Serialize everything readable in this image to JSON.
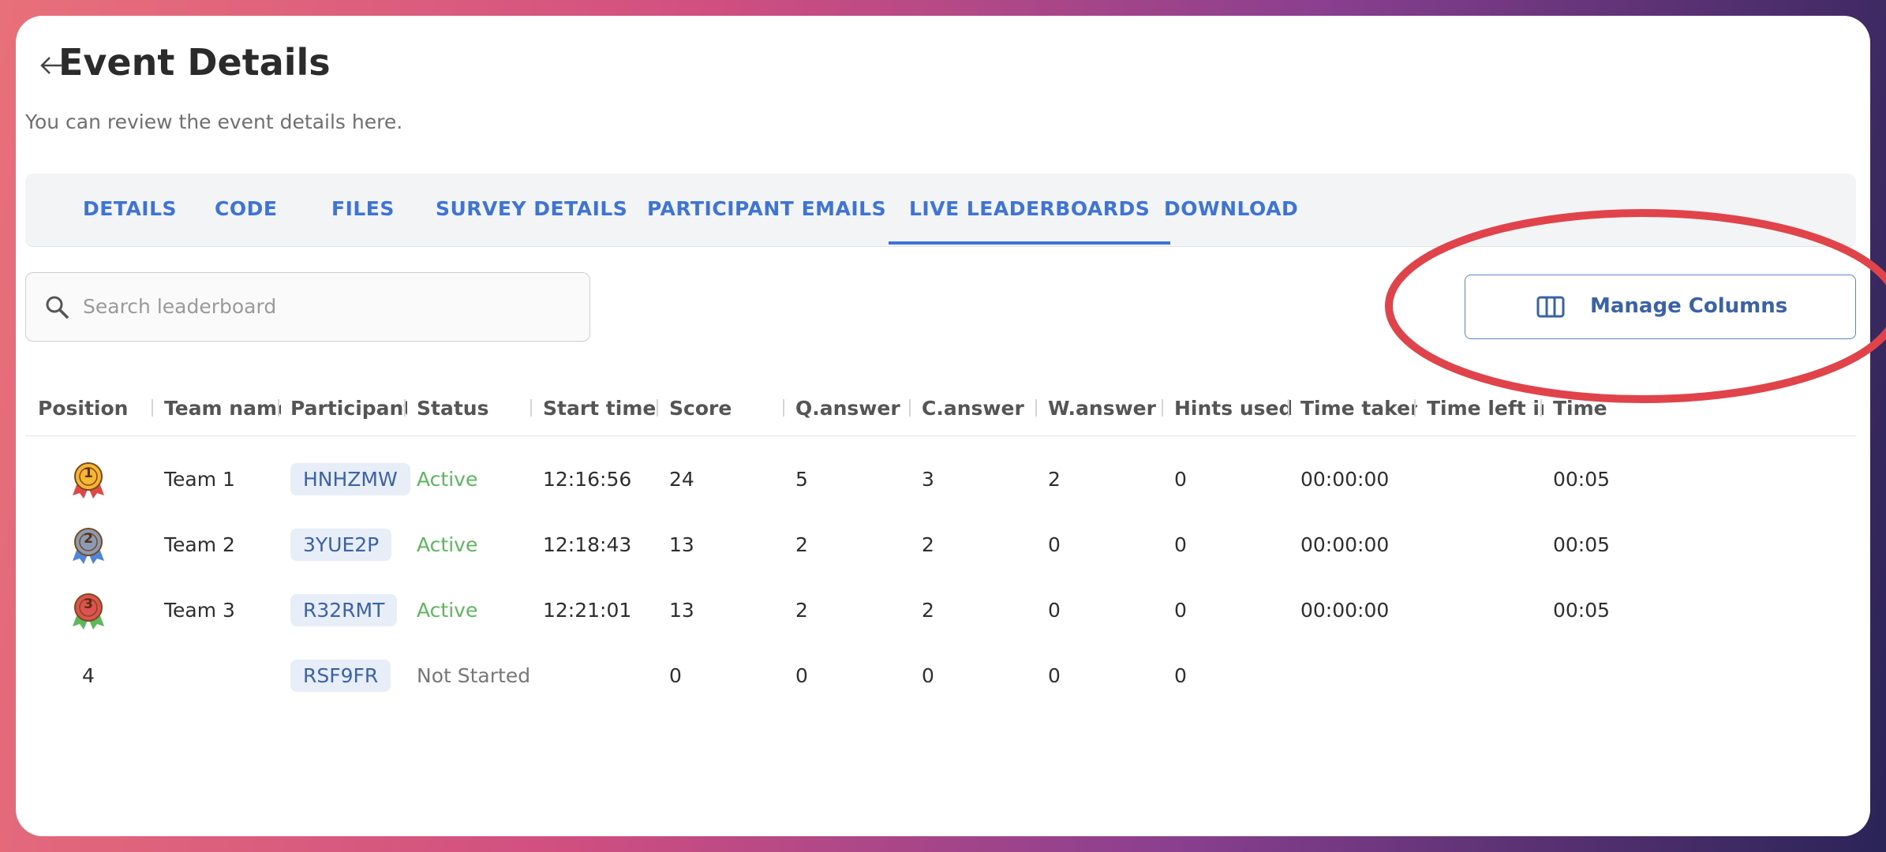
{
  "header": {
    "title": "Event Details",
    "subtitle": "You can review the event details here."
  },
  "tabs": {
    "items": [
      "DETAILS",
      "CODE",
      "FILES",
      "SURVEY DETAILS",
      "PARTICIPANT EMAILS",
      "LIVE LEADERBOARDS",
      "DOWNLOAD"
    ],
    "active": 5
  },
  "search": {
    "placeholder": "Search leaderboard"
  },
  "toolbar": {
    "button": "Manage Columns"
  },
  "table": {
    "columns": [
      "Position",
      "Team name",
      "Participant Code",
      "Status",
      "Start time",
      "Score",
      "Q.answer",
      "C.answer",
      "W.answer",
      "Hints used",
      "Time taken",
      "Time left in",
      "Time"
    ],
    "rows": [
      [
        "1",
        "Team 1",
        "HNHZMW",
        "Active",
        "12:16:56",
        24,
        5,
        3,
        2,
        0,
        "00:00:00",
        null,
        "00:05"
      ],
      [
        "2",
        "Team 2",
        "3YUE2P",
        "Active",
        "12:18:43",
        13,
        2,
        2,
        0,
        0,
        "00:00:00",
        null,
        "00:05"
      ],
      [
        "3",
        "Team 3",
        "R32RMT",
        "Active",
        "12:21:01",
        13,
        2,
        2,
        0,
        0,
        "00:00:00",
        null,
        "00:05"
      ],
      [
        "4",
        null,
        "RSF9FR",
        "Not Started",
        null,
        0,
        0,
        0,
        0,
        0,
        null,
        null,
        null
      ]
    ]
  }
}
